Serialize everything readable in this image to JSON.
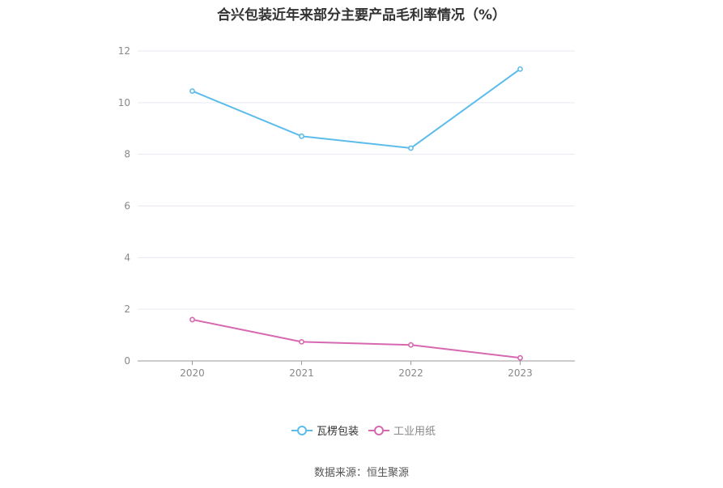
{
  "chart_data": {
    "type": "line",
    "title": "合兴包装近年来部分主要产品毛利率情况（%）",
    "categories": [
      "2020",
      "2021",
      "2022",
      "2023"
    ],
    "ylim": [
      0,
      12
    ],
    "yticks": [
      "0",
      "2",
      "4",
      "6",
      "8",
      "10",
      "12"
    ],
    "grid": true,
    "legend_position": "bottom",
    "series": [
      {
        "name": "瓦楞包装",
        "color": "#5bbcec",
        "values": [
          10.45,
          8.7,
          8.24,
          11.3
        ]
      },
      {
        "name": "工业用纸",
        "color": "#d667b0",
        "values": [
          1.6,
          0.74,
          0.62,
          0.12
        ]
      }
    ]
  },
  "source_text": "数据来源：恒生聚源"
}
